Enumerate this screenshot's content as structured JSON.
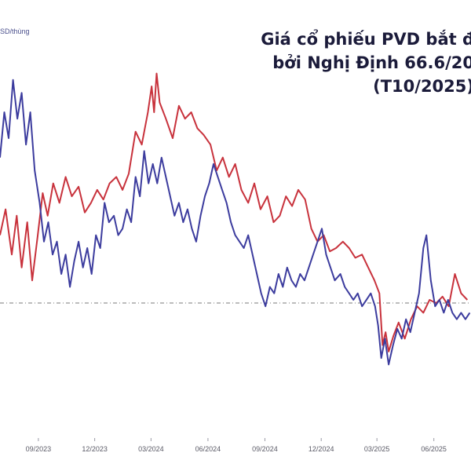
{
  "title_lines": [
    "Giá cổ phiếu PVD bắt đ",
    "bởi Nghị Định 66.6/20",
    "(T10/2025)"
  ],
  "unit_label": "SD/thùng",
  "colors": {
    "red_series": "#c8323c",
    "blue_series": "#3c3c9e",
    "reference_line": "#7a7a7a"
  },
  "chart_data": {
    "type": "line",
    "title": "Giá cổ phiếu PVD bắt đ… bởi Nghị Định 66.6/20… (T10/2025)",
    "x_tick_labels": [
      "09/2023",
      "12/2023",
      "03/2024",
      "06/2024",
      "09/2024",
      "12/2024",
      "03/2025",
      "06/2025"
    ],
    "x_tick_dates": [
      "2023-09-01",
      "2023-12-01",
      "2024-03-01",
      "2024-06-01",
      "2024-09-01",
      "2024-12-01",
      "2025-03-01",
      "2025-06-01"
    ],
    "xlim": [
      "2023-07-01",
      "2025-07-31"
    ],
    "y_axis_labels_visible": false,
    "reference_line": "dashed horizontal",
    "series": [
      {
        "color": "red",
        "points": [
          [
            "2023-07-01",
            62
          ],
          [
            "2023-07-10",
            70
          ],
          [
            "2023-07-20",
            56
          ],
          [
            "2023-07-28",
            68
          ],
          [
            "2023-08-05",
            52
          ],
          [
            "2023-08-14",
            66
          ],
          [
            "2023-08-22",
            48
          ],
          [
            "2023-08-31",
            62
          ],
          [
            "2023-09-08",
            75
          ],
          [
            "2023-09-16",
            68
          ],
          [
            "2023-09-25",
            78
          ],
          [
            "2023-10-05",
            72
          ],
          [
            "2023-10-15",
            80
          ],
          [
            "2023-10-25",
            74
          ],
          [
            "2023-11-05",
            77
          ],
          [
            "2023-11-15",
            69
          ],
          [
            "2023-11-25",
            72
          ],
          [
            "2023-12-05",
            76
          ],
          [
            "2023-12-15",
            73
          ],
          [
            "2023-12-25",
            78
          ],
          [
            "2024-01-05",
            80
          ],
          [
            "2024-01-15",
            76
          ],
          [
            "2024-01-25",
            81
          ],
          [
            "2024-02-05",
            94
          ],
          [
            "2024-02-15",
            90
          ],
          [
            "2024-02-25",
            100
          ],
          [
            "2024-03-02",
            108
          ],
          [
            "2024-03-06",
            100
          ],
          [
            "2024-03-10",
            112
          ],
          [
            "2024-03-15",
            103
          ],
          [
            "2024-03-25",
            98
          ],
          [
            "2024-04-05",
            92
          ],
          [
            "2024-04-15",
            102
          ],
          [
            "2024-04-25",
            98
          ],
          [
            "2024-05-05",
            100
          ],
          [
            "2024-05-15",
            95
          ],
          [
            "2024-05-25",
            93
          ],
          [
            "2024-06-05",
            90
          ],
          [
            "2024-06-15",
            82
          ],
          [
            "2024-06-25",
            86
          ],
          [
            "2024-07-05",
            80
          ],
          [
            "2024-07-15",
            84
          ],
          [
            "2024-07-25",
            76
          ],
          [
            "2024-08-05",
            72
          ],
          [
            "2024-08-15",
            78
          ],
          [
            "2024-08-25",
            70
          ],
          [
            "2024-09-05",
            74
          ],
          [
            "2024-09-15",
            66
          ],
          [
            "2024-09-25",
            68
          ],
          [
            "2024-10-05",
            74
          ],
          [
            "2024-10-15",
            71
          ],
          [
            "2024-10-25",
            76
          ],
          [
            "2024-11-05",
            73
          ],
          [
            "2024-11-15",
            64
          ],
          [
            "2024-11-25",
            60
          ],
          [
            "2024-12-05",
            62
          ],
          [
            "2024-12-15",
            57
          ],
          [
            "2024-12-25",
            58
          ],
          [
            "2025-01-05",
            60
          ],
          [
            "2025-01-15",
            58
          ],
          [
            "2025-01-25",
            55
          ],
          [
            "2025-02-05",
            56
          ],
          [
            "2025-02-15",
            52
          ],
          [
            "2025-02-25",
            48
          ],
          [
            "2025-03-05",
            44
          ],
          [
            "2025-03-10",
            28
          ],
          [
            "2025-03-15",
            32
          ],
          [
            "2025-03-20",
            26
          ],
          [
            "2025-03-28",
            31
          ],
          [
            "2025-04-05",
            35
          ],
          [
            "2025-04-15",
            30
          ],
          [
            "2025-04-25",
            36
          ],
          [
            "2025-05-05",
            40
          ],
          [
            "2025-05-15",
            38
          ],
          [
            "2025-05-25",
            42
          ],
          [
            "2025-06-05",
            41
          ],
          [
            "2025-06-15",
            43
          ],
          [
            "2025-06-25",
            40
          ],
          [
            "2025-07-05",
            50
          ],
          [
            "2025-07-15",
            44
          ],
          [
            "2025-07-25",
            42
          ]
        ]
      },
      {
        "color": "blue",
        "points": [
          [
            "2023-07-01",
            86
          ],
          [
            "2023-07-08",
            100
          ],
          [
            "2023-07-15",
            92
          ],
          [
            "2023-07-22",
            110
          ],
          [
            "2023-07-29",
            98
          ],
          [
            "2023-08-05",
            106
          ],
          [
            "2023-08-12",
            90
          ],
          [
            "2023-08-19",
            100
          ],
          [
            "2023-08-26",
            82
          ],
          [
            "2023-09-03",
            72
          ],
          [
            "2023-09-10",
            60
          ],
          [
            "2023-09-17",
            66
          ],
          [
            "2023-09-24",
            56
          ],
          [
            "2023-10-01",
            60
          ],
          [
            "2023-10-08",
            50
          ],
          [
            "2023-10-15",
            56
          ],
          [
            "2023-10-22",
            46
          ],
          [
            "2023-10-29",
            54
          ],
          [
            "2023-11-05",
            60
          ],
          [
            "2023-11-12",
            52
          ],
          [
            "2023-11-19",
            58
          ],
          [
            "2023-11-26",
            50
          ],
          [
            "2023-12-03",
            62
          ],
          [
            "2023-12-10",
            58
          ],
          [
            "2023-12-17",
            72
          ],
          [
            "2023-12-24",
            66
          ],
          [
            "2024-01-01",
            68
          ],
          [
            "2024-01-08",
            62
          ],
          [
            "2024-01-15",
            64
          ],
          [
            "2024-01-22",
            70
          ],
          [
            "2024-01-29",
            66
          ],
          [
            "2024-02-05",
            80
          ],
          [
            "2024-02-12",
            74
          ],
          [
            "2024-02-19",
            88
          ],
          [
            "2024-02-26",
            78
          ],
          [
            "2024-03-04",
            84
          ],
          [
            "2024-03-11",
            78
          ],
          [
            "2024-03-18",
            86
          ],
          [
            "2024-03-25",
            80
          ],
          [
            "2024-04-01",
            74
          ],
          [
            "2024-04-08",
            68
          ],
          [
            "2024-04-15",
            72
          ],
          [
            "2024-04-22",
            66
          ],
          [
            "2024-04-29",
            70
          ],
          [
            "2024-05-06",
            64
          ],
          [
            "2024-05-13",
            60
          ],
          [
            "2024-05-20",
            68
          ],
          [
            "2024-05-27",
            74
          ],
          [
            "2024-06-03",
            78
          ],
          [
            "2024-06-10",
            84
          ],
          [
            "2024-06-17",
            80
          ],
          [
            "2024-06-24",
            76
          ],
          [
            "2024-07-01",
            72
          ],
          [
            "2024-07-08",
            66
          ],
          [
            "2024-07-15",
            62
          ],
          [
            "2024-07-22",
            60
          ],
          [
            "2024-07-29",
            58
          ],
          [
            "2024-08-05",
            62
          ],
          [
            "2024-08-12",
            56
          ],
          [
            "2024-08-19",
            50
          ],
          [
            "2024-08-26",
            44
          ],
          [
            "2024-09-02",
            40
          ],
          [
            "2024-09-09",
            46
          ],
          [
            "2024-09-16",
            44
          ],
          [
            "2024-09-23",
            50
          ],
          [
            "2024-09-30",
            46
          ],
          [
            "2024-10-07",
            52
          ],
          [
            "2024-10-14",
            48
          ],
          [
            "2024-10-21",
            46
          ],
          [
            "2024-10-28",
            50
          ],
          [
            "2024-11-04",
            48
          ],
          [
            "2024-11-11",
            52
          ],
          [
            "2024-11-18",
            56
          ],
          [
            "2024-11-25",
            60
          ],
          [
            "2024-12-02",
            64
          ],
          [
            "2024-12-09",
            56
          ],
          [
            "2024-12-16",
            52
          ],
          [
            "2024-12-23",
            48
          ],
          [
            "2025-01-01",
            50
          ],
          [
            "2025-01-08",
            46
          ],
          [
            "2025-01-15",
            44
          ],
          [
            "2025-01-22",
            42
          ],
          [
            "2025-01-29",
            44
          ],
          [
            "2025-02-05",
            40
          ],
          [
            "2025-02-12",
            42
          ],
          [
            "2025-02-19",
            44
          ],
          [
            "2025-02-26",
            40
          ],
          [
            "2025-03-03",
            34
          ],
          [
            "2025-03-08",
            24
          ],
          [
            "2025-03-14",
            30
          ],
          [
            "2025-03-20",
            22
          ],
          [
            "2025-03-27",
            28
          ],
          [
            "2025-04-03",
            33
          ],
          [
            "2025-04-10",
            30
          ],
          [
            "2025-04-17",
            36
          ],
          [
            "2025-04-24",
            32
          ],
          [
            "2025-05-01",
            38
          ],
          [
            "2025-05-08",
            44
          ],
          [
            "2025-05-15",
            58
          ],
          [
            "2025-05-20",
            62
          ],
          [
            "2025-05-27",
            48
          ],
          [
            "2025-06-03",
            40
          ],
          [
            "2025-06-10",
            42
          ],
          [
            "2025-06-17",
            38
          ],
          [
            "2025-06-24",
            42
          ],
          [
            "2025-07-01",
            38
          ],
          [
            "2025-07-08",
            36
          ],
          [
            "2025-07-15",
            38
          ],
          [
            "2025-07-22",
            36
          ],
          [
            "2025-07-29",
            38
          ]
        ]
      }
    ]
  }
}
